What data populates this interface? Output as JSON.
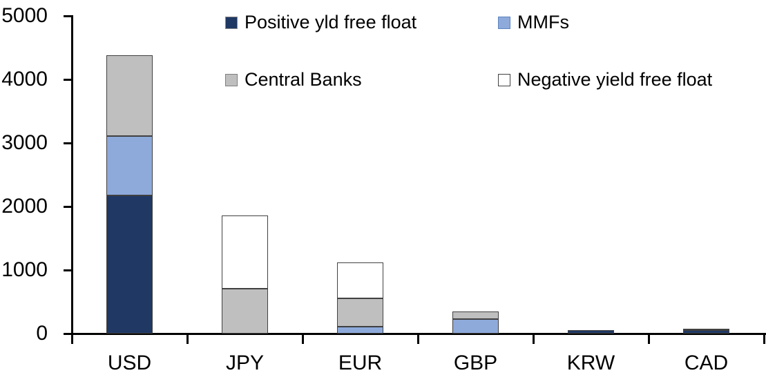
{
  "chart_data": {
    "type": "bar",
    "subtype": "stacked-vertical",
    "title": "",
    "xlabel": "",
    "ylabel": "",
    "categories": [
      "USD",
      "JPY",
      "EUR",
      "GBP",
      "KRW",
      "CAD"
    ],
    "series": [
      {
        "name": "Positive yld free float",
        "color": "#1F3864",
        "swatch_border": "#8C8C8C",
        "values": [
          2170,
          0,
          0,
          0,
          60,
          50
        ]
      },
      {
        "name": "MMFs",
        "color": "#8EAADB",
        "swatch_border": "#5B83C0",
        "values": [
          935,
          0,
          110,
          230,
          0,
          0
        ]
      },
      {
        "name": "Central Banks",
        "color": "#BFBFBF",
        "swatch_border": "#7F7F7F",
        "values": [
          1280,
          710,
          440,
          120,
          0,
          30
        ]
      },
      {
        "name": "Negative yield free float",
        "color": "#FFFFFF",
        "swatch_border": "#404040",
        "values": [
          0,
          1150,
          570,
          0,
          0,
          0
        ]
      }
    ],
    "totals_by_category": [
      4385,
      1860,
      1120,
      350,
      60,
      80
    ],
    "ylim": [
      0,
      5000
    ],
    "yticks": [
      0,
      1000,
      2000,
      3000,
      4000,
      5000
    ],
    "grid": false,
    "legend_position": "top",
    "axis_color": "#000000",
    "text_color": "#000000",
    "segment_border_color": "#404040",
    "background_color": "#FFFFFF"
  }
}
